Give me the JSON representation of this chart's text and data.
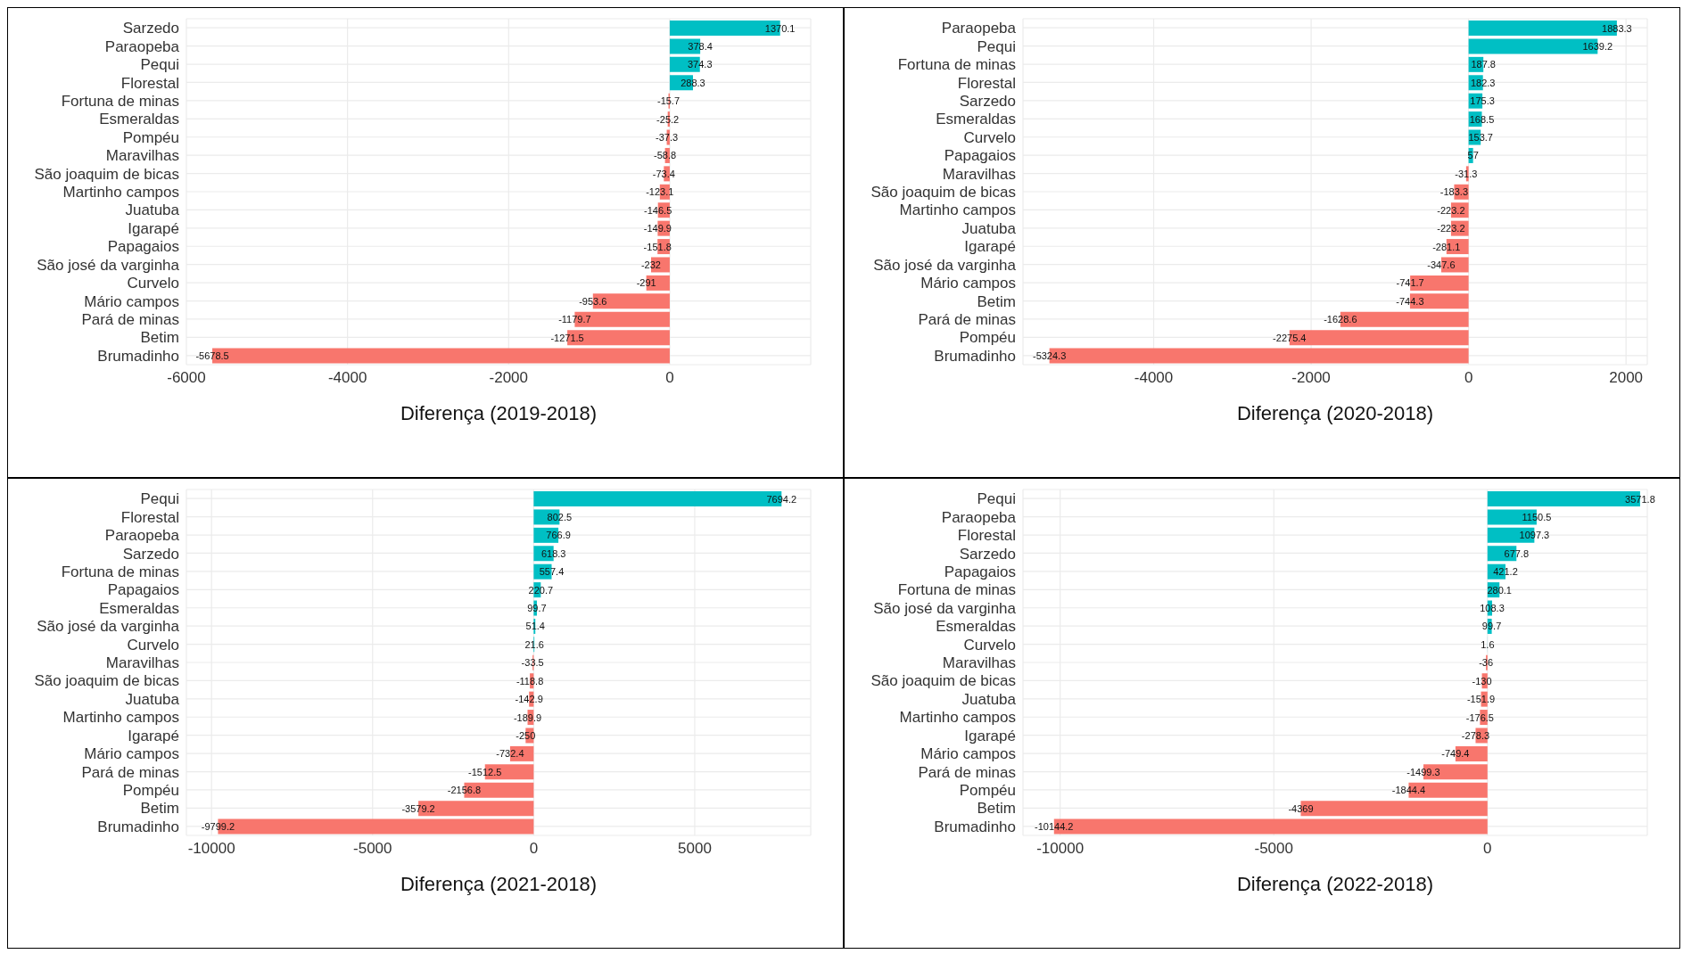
{
  "chart_data": [
    {
      "type": "bar",
      "orientation": "horizontal",
      "xlabel": "Diferença (2019-2018)",
      "categories": [
        "Sarzedo",
        "Paraopeba",
        "Pequi",
        "Florestal",
        "Fortuna de minas",
        "Esmeraldas",
        "Pompéu",
        "Maravilhas",
        "São joaquim de bicas",
        "Martinho campos",
        "Juatuba",
        "Igarapé",
        "Papagaios",
        "São josé da varginha",
        "Curvelo",
        "Mário campos",
        "Pará de minas",
        "Betim",
        "Brumadinho"
      ],
      "values": [
        1370.1,
        378.4,
        374.3,
        288.3,
        -15.7,
        -25.2,
        -37.3,
        -58.8,
        -73.4,
        -123.1,
        -146.5,
        -149.9,
        -151.8,
        -232,
        -291,
        -953.6,
        -1179.7,
        -1271.5,
        -5678.5
      ],
      "colors": [
        "#00bfc4",
        "#00bfc4",
        "#00bfc4",
        "#00bfc4",
        "#f8766d",
        "#f8766d",
        "#f8766d",
        "#f8766d",
        "#f8766d",
        "#f8766d",
        "#f8766d",
        "#f8766d",
        "#f8766d",
        "#f8766d",
        "#f8766d",
        "#f8766d",
        "#f8766d",
        "#f8766d",
        "#f8766d"
      ],
      "xlim": [
        -6000,
        1750
      ],
      "xticks": [
        -6000,
        -4000,
        -2000,
        0
      ],
      "grid": true,
      "data_labels": true
    },
    {
      "type": "bar",
      "orientation": "horizontal",
      "xlabel": "Diferença (2020-2018)",
      "categories": [
        "Paraopeba",
        "Pequi",
        "Fortuna de minas",
        "Florestal",
        "Sarzedo",
        "Esmeraldas",
        "Curvelo",
        "Papagaios",
        "Maravilhas",
        "São joaquim de bicas",
        "Martinho campos",
        "Juatuba",
        "Igarapé",
        "São josé da varginha",
        "Mário campos",
        "Betim",
        "Pará de minas",
        "Pompéu",
        "Brumadinho"
      ],
      "values": [
        1883.3,
        1639.2,
        187.8,
        182.3,
        175.3,
        168.5,
        153.7,
        57,
        -31.3,
        -183.3,
        -223.2,
        -223.2,
        -281.1,
        -347.6,
        -741.7,
        -744.3,
        -1628.6,
        -2275.4,
        -5324.3
      ],
      "colors": [
        "#00bfc4",
        "#00bfc4",
        "#00bfc4",
        "#00bfc4",
        "#00bfc4",
        "#00bfc4",
        "#00bfc4",
        "#00bfc4",
        "#f8766d",
        "#f8766d",
        "#f8766d",
        "#f8766d",
        "#f8766d",
        "#f8766d",
        "#f8766d",
        "#f8766d",
        "#f8766d",
        "#f8766d",
        "#f8766d"
      ],
      "xlim": [
        -5660,
        2270
      ],
      "xticks": [
        -4000,
        -2000,
        0,
        2000
      ],
      "grid": true,
      "data_labels": true
    },
    {
      "type": "bar",
      "orientation": "horizontal",
      "xlabel": "Diferença (2021-2018)",
      "categories": [
        "Pequi",
        "Florestal",
        "Paraopeba",
        "Sarzedo",
        "Fortuna de minas",
        "Papagaios",
        "Esmeraldas",
        "São josé da varginha",
        "Curvelo",
        "Maravilhas",
        "São joaquim de bicas",
        "Juatuba",
        "Martinho campos",
        "Igarapé",
        "Mário campos",
        "Pará de minas",
        "Pompéu",
        "Betim",
        "Brumadinho"
      ],
      "values": [
        7694.2,
        802.5,
        766.9,
        618.3,
        557.4,
        220.7,
        99.7,
        51.4,
        21.6,
        -33.5,
        -118.8,
        -142.9,
        -189.9,
        -250,
        -732.4,
        -1512.5,
        -2156.8,
        -3579.2,
        -9799.2
      ],
      "colors": [
        "#00bfc4",
        "#00bfc4",
        "#00bfc4",
        "#00bfc4",
        "#00bfc4",
        "#00bfc4",
        "#00bfc4",
        "#00bfc4",
        "#00bfc4",
        "#f8766d",
        "#f8766d",
        "#f8766d",
        "#f8766d",
        "#f8766d",
        "#f8766d",
        "#f8766d",
        "#f8766d",
        "#f8766d",
        "#f8766d"
      ],
      "xlim": [
        -10780,
        8600
      ],
      "xticks": [
        -10000,
        -5000,
        0,
        5000
      ],
      "grid": true,
      "data_labels": true
    },
    {
      "type": "bar",
      "orientation": "horizontal",
      "xlabel": "Diferença (2022-2018)",
      "categories": [
        "Pequi",
        "Paraopeba",
        "Florestal",
        "Sarzedo",
        "Papagaios",
        "Fortuna de minas",
        "São josé da varginha",
        "Esmeraldas",
        "Curvelo",
        "Maravilhas",
        "São joaquim de bicas",
        "Juatuba",
        "Martinho campos",
        "Igarapé",
        "Mário campos",
        "Pará de minas",
        "Pompéu",
        "Betim",
        "Brumadinho"
      ],
      "values": [
        3571.8,
        1150.5,
        1097.3,
        677.8,
        421.2,
        280.1,
        108.3,
        99.7,
        1.6,
        -36,
        -130,
        -151.9,
        -176.5,
        -278.3,
        -749.4,
        -1499.3,
        -1844.4,
        -4369,
        -10144.2
      ],
      "colors": [
        "#00bfc4",
        "#00bfc4",
        "#00bfc4",
        "#00bfc4",
        "#00bfc4",
        "#00bfc4",
        "#00bfc4",
        "#00bfc4",
        "#00bfc4",
        "#f8766d",
        "#f8766d",
        "#f8766d",
        "#f8766d",
        "#f8766d",
        "#f8766d",
        "#f8766d",
        "#f8766d",
        "#f8766d",
        "#f8766d"
      ],
      "xlim": [
        -10870,
        3740
      ],
      "xticks": [
        -10000,
        -5000,
        0
      ],
      "grid": true,
      "data_labels": true
    }
  ]
}
